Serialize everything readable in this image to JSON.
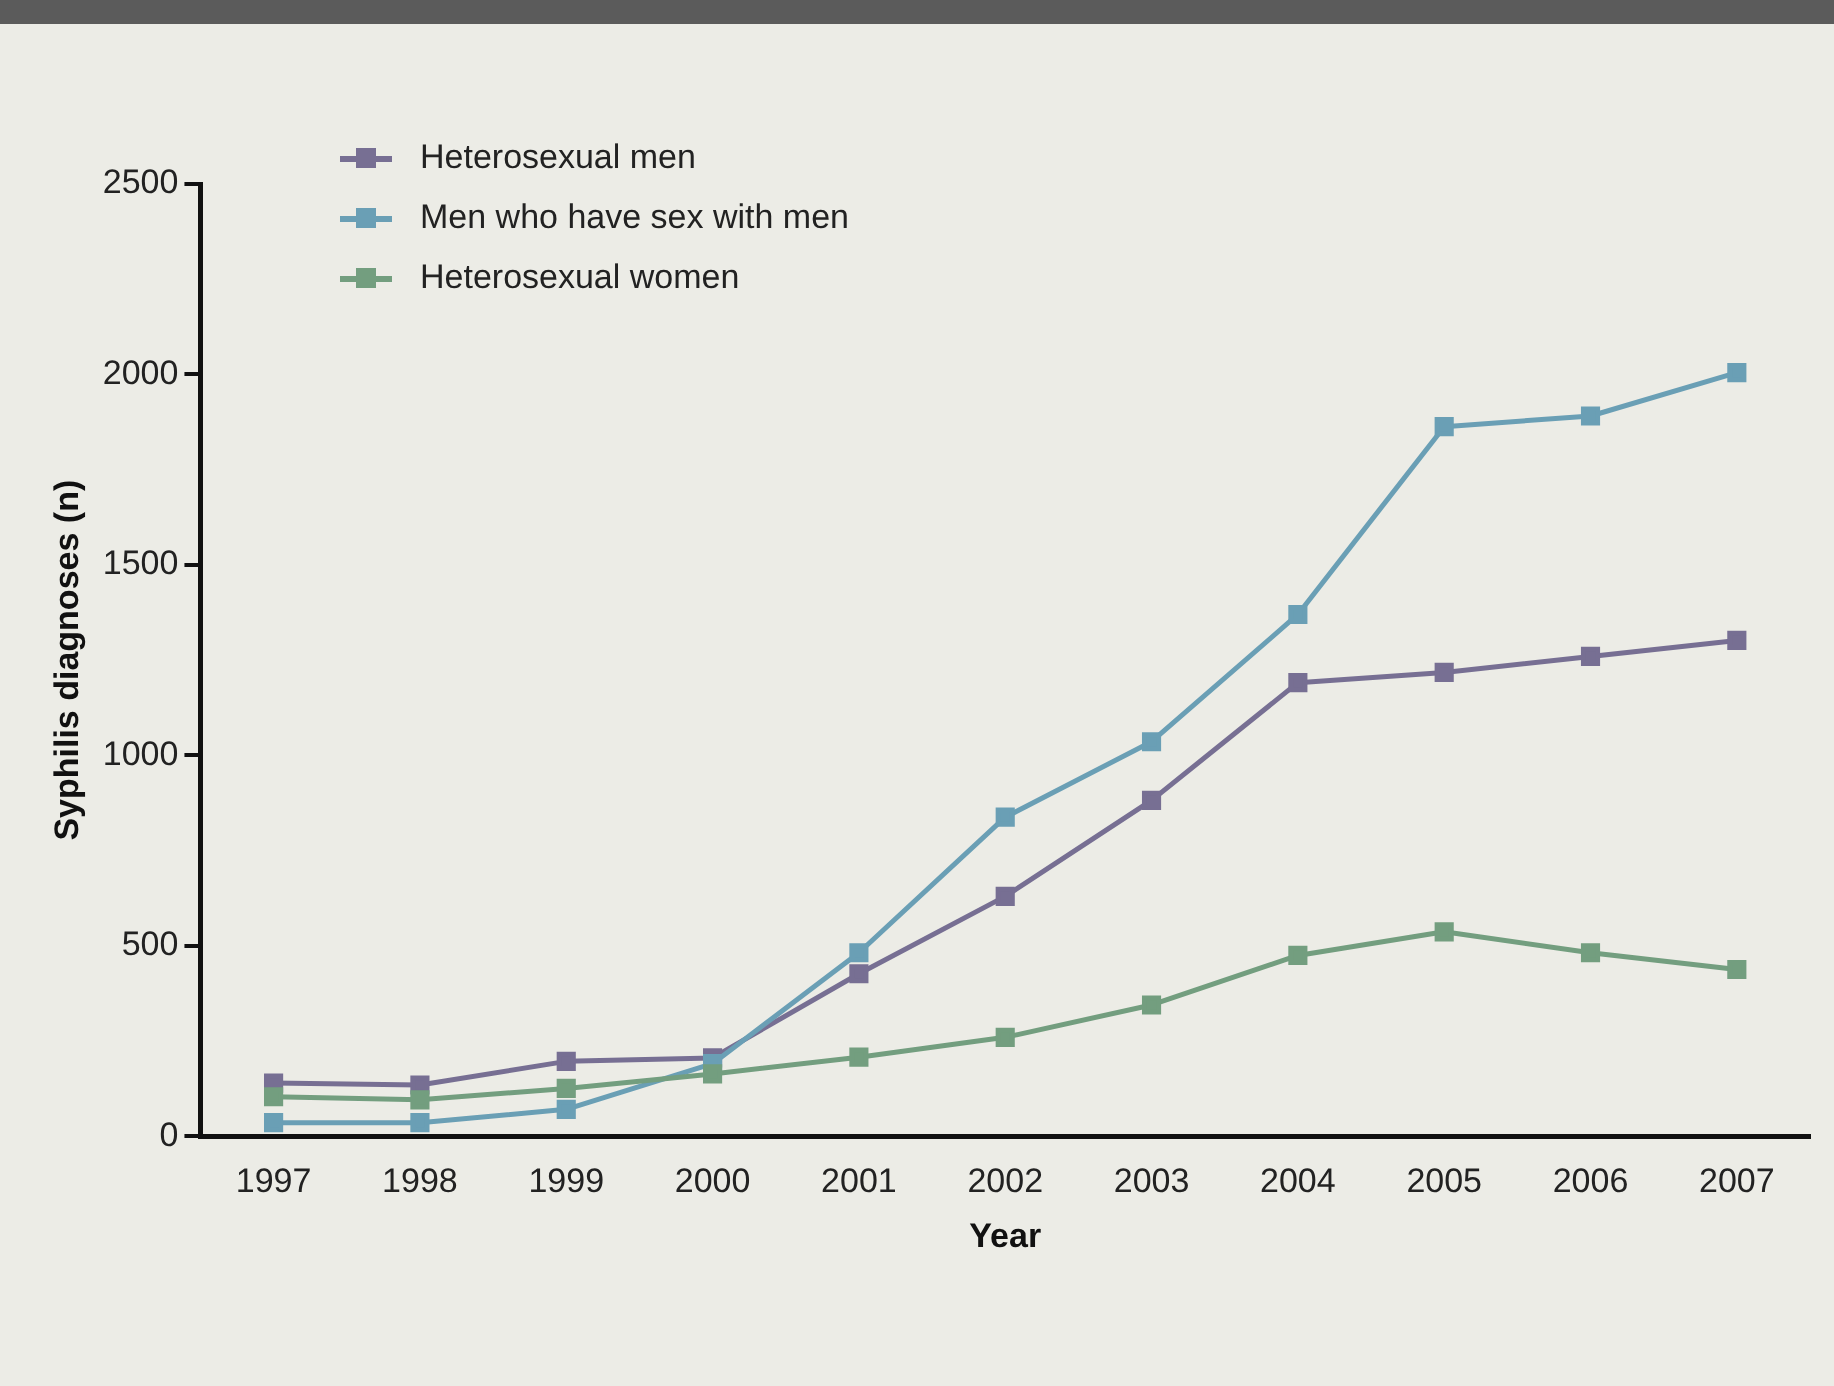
{
  "chart_data": {
    "type": "line",
    "xlabel": "Year",
    "ylabel": "Syphilis diagnoses (n)",
    "categories": [
      "1997",
      "1998",
      "1999",
      "2000",
      "2001",
      "2002",
      "2003",
      "2004",
      "2005",
      "2006",
      "2007"
    ],
    "series": [
      {
        "name": "Heterosexual men",
        "color": "#776f93",
        "values": [
          140,
          135,
          197,
          206,
          427,
          630,
          882,
          1191,
          1218,
          1260,
          1302
        ]
      },
      {
        "name": "Men who have sex with men",
        "color": "#6a9fb5",
        "values": [
          36,
          36,
          71,
          191,
          482,
          838,
          1036,
          1370,
          1863,
          1891,
          2005
        ]
      },
      {
        "name": "Heterosexual women",
        "color": "#739e7f",
        "values": [
          104,
          96,
          126,
          164,
          208,
          260,
          345,
          475,
          537,
          482,
          438
        ]
      }
    ],
    "ylim": [
      0,
      2500
    ],
    "yticks": [
      0,
      500,
      1000,
      1500,
      2000,
      2500
    ],
    "grid": false,
    "legend": "top left",
    "marker": "square",
    "line_style": "solid"
  }
}
